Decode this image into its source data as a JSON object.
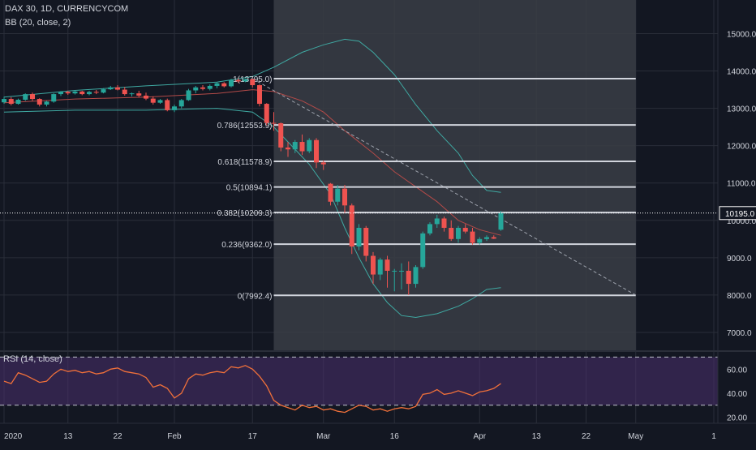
{
  "header": {
    "symbol_line": "DAX 30, 1D, CURRENCYCOM",
    "bb_line": "BB (20, close, 2)",
    "rsi_line": "RSI (14, close)"
  },
  "colors": {
    "background": "#131722",
    "grid": "#2a2e39",
    "up": "#26a69a",
    "down": "#ef5350",
    "bb_band": "#3fa9a2",
    "bb_basis": "#b34a48",
    "fib_line": "#d1d4dc",
    "fib_region": "#3a3d45",
    "trend_line": "#9ea3ad",
    "rsi_line": "#f0703a",
    "rsi_band": "#4a2f6e",
    "axis_text": "#d1d4dc"
  },
  "price_axis": {
    "ticks": [
      "15000.0",
      "14000.0",
      "13000.0",
      "12000.0",
      "11000.0",
      "10000.0",
      "9000.0",
      "8000.0",
      "7000.0"
    ],
    "last_price": "10195.0"
  },
  "rsi_axis": {
    "ticks": [
      "60.00",
      "40.00",
      "20.00"
    ]
  },
  "time_axis": {
    "ticks": [
      "2020",
      "13",
      "22",
      "Feb",
      "17",
      "Mar",
      "16",
      "Apr",
      "13",
      "22",
      "May",
      "1"
    ]
  },
  "fib_levels": [
    {
      "label": "1(13795.0)",
      "value": 13795.0
    },
    {
      "label": "0.786(12553.9)",
      "value": 12553.9
    },
    {
      "label": "0.618(11578.9)",
      "value": 11578.9
    },
    {
      "label": "0.5(10894.1)",
      "value": 10894.1
    },
    {
      "label": "0.382(10209.3)",
      "value": 10209.3
    },
    {
      "label": "0.236(9362.0)",
      "value": 9362.0
    },
    {
      "label": "0(7992.4)",
      "value": 7992.4
    }
  ],
  "chart_data": {
    "type": "candlestick",
    "title": "DAX 30, 1D, CURRENCYCOM",
    "ylim": [
      6500,
      15900
    ],
    "rsi_ylim": [
      15,
      75
    ],
    "rsi_bands": [
      70,
      30
    ],
    "x_ticks": [
      {
        "label": "2020",
        "index": 0
      },
      {
        "label": "13",
        "index": 9
      },
      {
        "label": "22",
        "index": 16
      },
      {
        "label": "Feb",
        "index": 24
      },
      {
        "label": "17",
        "index": 35
      },
      {
        "label": "Mar",
        "index": 45
      },
      {
        "label": "16",
        "index": 55
      },
      {
        "label": "Apr",
        "index": 67
      },
      {
        "label": "13",
        "index": 75
      },
      {
        "label": "22",
        "index": 82
      },
      {
        "label": "May",
        "index": 89
      },
      {
        "label": "1",
        "index": 100
      }
    ],
    "candles": [
      [
        13160,
        13310,
        13120,
        13250
      ],
      [
        13250,
        13300,
        13080,
        13120
      ],
      [
        13120,
        13260,
        13100,
        13230
      ],
      [
        13230,
        13400,
        13200,
        13380
      ],
      [
        13380,
        13420,
        13200,
        13250
      ],
      [
        13250,
        13270,
        13050,
        13100
      ],
      [
        13100,
        13200,
        13050,
        13180
      ],
      [
        13180,
        13400,
        13150,
        13380
      ],
      [
        13380,
        13460,
        13330,
        13440
      ],
      [
        13440,
        13470,
        13360,
        13400
      ],
      [
        13400,
        13480,
        13370,
        13450
      ],
      [
        13450,
        13470,
        13350,
        13380
      ],
      [
        13380,
        13470,
        13350,
        13440
      ],
      [
        13440,
        13490,
        13380,
        13420
      ],
      [
        13420,
        13540,
        13400,
        13510
      ],
      [
        13510,
        13600,
        13490,
        13560
      ],
      [
        13560,
        13620,
        13480,
        13500
      ],
      [
        13500,
        13570,
        13340,
        13380
      ],
      [
        13380,
        13420,
        13320,
        13400
      ],
      [
        13400,
        13470,
        13300,
        13340
      ],
      [
        13340,
        13420,
        13220,
        13260
      ],
      [
        13260,
        13320,
        13100,
        13150
      ],
      [
        13150,
        13250,
        13120,
        13220
      ],
      [
        13220,
        13260,
        12920,
        12950
      ],
      [
        12950,
        13100,
        12900,
        13050
      ],
      [
        13050,
        13250,
        13000,
        13220
      ],
      [
        13220,
        13520,
        13200,
        13480
      ],
      [
        13480,
        13600,
        13400,
        13560
      ],
      [
        13560,
        13620,
        13480,
        13520
      ],
      [
        13520,
        13640,
        13480,
        13600
      ],
      [
        13600,
        13700,
        13540,
        13670
      ],
      [
        13670,
        13700,
        13560,
        13590
      ],
      [
        13590,
        13790,
        13560,
        13760
      ],
      [
        13760,
        13800,
        13680,
        13720
      ],
      [
        13720,
        13795,
        13700,
        13780
      ],
      [
        13780,
        13790,
        13560,
        13620
      ],
      [
        13620,
        13640,
        13050,
        13120
      ],
      [
        13120,
        13140,
        12550,
        12610
      ],
      [
        12610,
        12900,
        12400,
        12600
      ],
      [
        12600,
        12620,
        11850,
        11950
      ],
      [
        11950,
        12100,
        11700,
        11900
      ],
      [
        11900,
        12150,
        11800,
        12100
      ],
      [
        12100,
        12300,
        11750,
        11850
      ],
      [
        11850,
        12200,
        11800,
        12150
      ],
      [
        12150,
        12200,
        11400,
        11550
      ],
      [
        11550,
        11600,
        11350,
        11500
      ],
      [
        10980,
        11000,
        10400,
        10500
      ],
      [
        10500,
        10950,
        10400,
        10850
      ],
      [
        10850,
        10950,
        10200,
        10400
      ],
      [
        10400,
        10450,
        9100,
        9300
      ],
      [
        9300,
        9900,
        9200,
        9800
      ],
      [
        9800,
        9850,
        8900,
        9050
      ],
      [
        9050,
        9150,
        8300,
        8550
      ],
      [
        8550,
        9000,
        8400,
        8950
      ],
      [
        8950,
        9050,
        8200,
        8650
      ],
      [
        8650,
        8700,
        8100,
        8650
      ],
      [
        8650,
        8850,
        8150,
        8650
      ],
      [
        8650,
        8900,
        8000,
        8300
      ],
      [
        8300,
        8800,
        8200,
        8750
      ],
      [
        8750,
        9700,
        8700,
        9650
      ],
      [
        9650,
        9950,
        9600,
        9900
      ],
      [
        9900,
        10150,
        9800,
        10050
      ],
      [
        10050,
        10100,
        9700,
        9800
      ],
      [
        9800,
        10000,
        9450,
        9500
      ],
      [
        9500,
        9850,
        9400,
        9800
      ],
      [
        9800,
        9900,
        9650,
        9700
      ],
      [
        9700,
        9800,
        9350,
        9400
      ],
      [
        9400,
        9550,
        9350,
        9500
      ],
      [
        9500,
        9600,
        9450,
        9550
      ],
      [
        9550,
        9600,
        9500,
        9510
      ],
      [
        9750,
        10250,
        9720,
        10195
      ]
    ],
    "bb_upper": [
      [
        0,
        13300
      ],
      [
        10,
        13480
      ],
      [
        20,
        13600
      ],
      [
        30,
        13700
      ],
      [
        35,
        13850
      ],
      [
        38,
        14100
      ],
      [
        42,
        14500
      ],
      [
        45,
        14700
      ],
      [
        48,
        14850
      ],
      [
        50,
        14800
      ],
      [
        52,
        14500
      ],
      [
        55,
        13900
      ],
      [
        58,
        13100
      ],
      [
        61,
        12400
      ],
      [
        64,
        11800
      ],
      [
        66,
        11200
      ],
      [
        68,
        10800
      ],
      [
        70,
        10750
      ]
    ],
    "bb_basis": [
      [
        0,
        13150
      ],
      [
        10,
        13250
      ],
      [
        20,
        13300
      ],
      [
        30,
        13400
      ],
      [
        35,
        13500
      ],
      [
        38,
        13450
      ],
      [
        42,
        13200
      ],
      [
        45,
        12900
      ],
      [
        48,
        12400
      ],
      [
        52,
        11800
      ],
      [
        55,
        11300
      ],
      [
        58,
        10900
      ],
      [
        61,
        10500
      ],
      [
        64,
        10000
      ],
      [
        67,
        9750
      ],
      [
        70,
        9600
      ]
    ],
    "bb_lower": [
      [
        0,
        12900
      ],
      [
        10,
        12950
      ],
      [
        20,
        12950
      ],
      [
        30,
        13000
      ],
      [
        35,
        12900
      ],
      [
        38,
        12500
      ],
      [
        40,
        12100
      ],
      [
        43,
        11500
      ],
      [
        46,
        10700
      ],
      [
        48,
        9800
      ],
      [
        50,
        9000
      ],
      [
        52,
        8300
      ],
      [
        54,
        7800
      ],
      [
        56,
        7450
      ],
      [
        58,
        7400
      ],
      [
        61,
        7500
      ],
      [
        64,
        7700
      ],
      [
        66,
        7900
      ],
      [
        68,
        8150
      ],
      [
        70,
        8200
      ]
    ],
    "trend_line": [
      [
        35,
        13795
      ],
      [
        89,
        8000
      ]
    ],
    "fib_range": [
      38,
      89
    ],
    "rsi": [
      [
        0,
        50
      ],
      [
        1,
        48
      ],
      [
        2,
        57
      ],
      [
        3,
        55
      ],
      [
        4,
        52
      ],
      [
        5,
        49
      ],
      [
        6,
        50
      ],
      [
        7,
        56
      ],
      [
        8,
        60
      ],
      [
        9,
        58
      ],
      [
        10,
        59
      ],
      [
        11,
        57
      ],
      [
        12,
        58
      ],
      [
        13,
        56
      ],
      [
        14,
        57
      ],
      [
        15,
        60
      ],
      [
        16,
        61
      ],
      [
        17,
        58
      ],
      [
        18,
        57
      ],
      [
        19,
        56
      ],
      [
        20,
        53
      ],
      [
        21,
        45
      ],
      [
        22,
        47
      ],
      [
        23,
        44
      ],
      [
        24,
        36
      ],
      [
        25,
        40
      ],
      [
        26,
        52
      ],
      [
        27,
        56
      ],
      [
        28,
        55
      ],
      [
        29,
        57
      ],
      [
        30,
        58
      ],
      [
        31,
        57
      ],
      [
        32,
        62
      ],
      [
        33,
        61
      ],
      [
        34,
        63
      ],
      [
        35,
        60
      ],
      [
        36,
        54
      ],
      [
        37,
        46
      ],
      [
        38,
        34
      ],
      [
        39,
        30
      ],
      [
        40,
        28
      ],
      [
        41,
        26
      ],
      [
        42,
        30
      ],
      [
        43,
        28
      ],
      [
        44,
        29
      ],
      [
        45,
        26
      ],
      [
        46,
        27
      ],
      [
        47,
        25
      ],
      [
        48,
        24
      ],
      [
        49,
        27
      ],
      [
        50,
        30
      ],
      [
        51,
        29
      ],
      [
        52,
        26
      ],
      [
        53,
        27
      ],
      [
        54,
        25
      ],
      [
        55,
        27
      ],
      [
        56,
        28
      ],
      [
        57,
        27
      ],
      [
        58,
        29
      ],
      [
        59,
        39
      ],
      [
        60,
        40
      ],
      [
        61,
        43
      ],
      [
        62,
        39
      ],
      [
        63,
        40
      ],
      [
        64,
        42
      ],
      [
        65,
        40
      ],
      [
        66,
        38
      ],
      [
        67,
        41
      ],
      [
        68,
        42
      ],
      [
        69,
        44
      ],
      [
        70,
        48
      ]
    ]
  }
}
